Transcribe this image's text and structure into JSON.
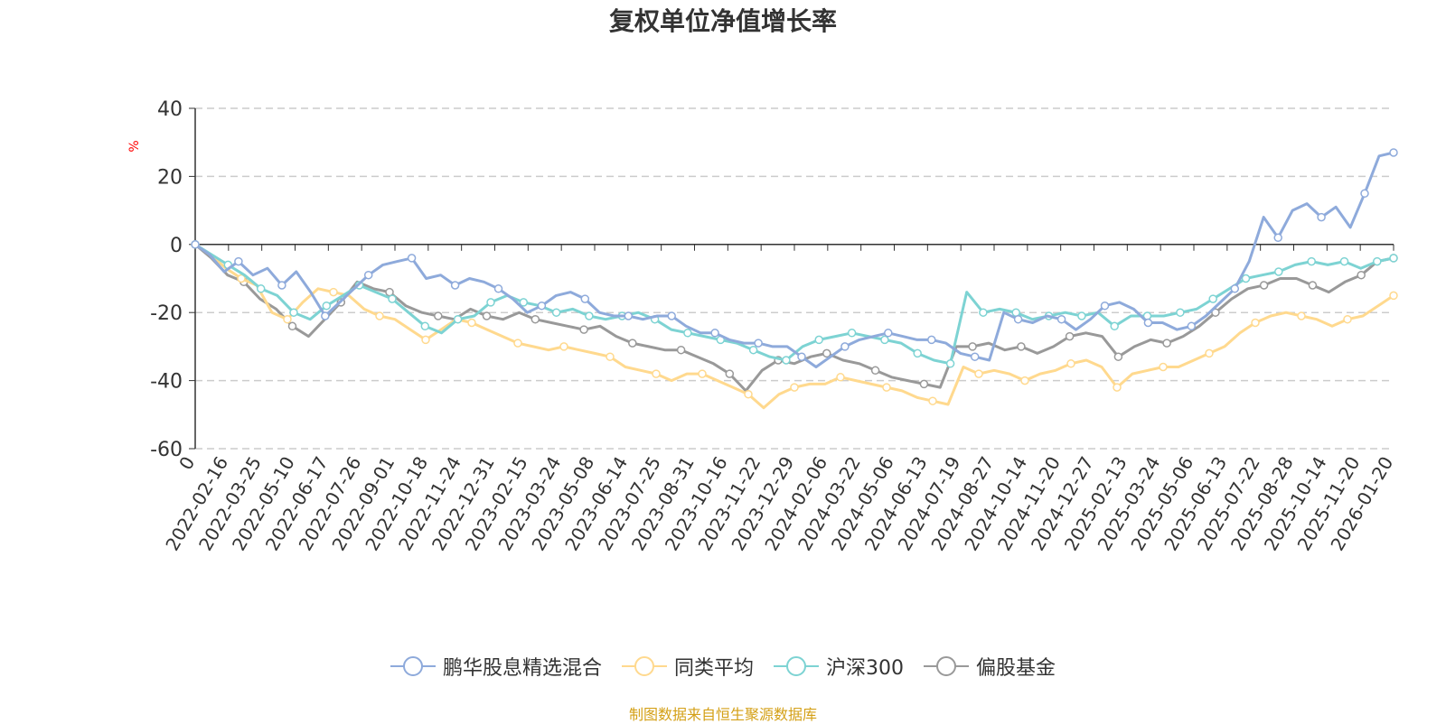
{
  "chart_data": {
    "type": "line",
    "title": "复权单位净值增长率",
    "ylabel": "%",
    "xlabel": "",
    "ylim": [
      -60,
      40
    ],
    "yticks": [
      40,
      20,
      0,
      -20,
      -40,
      -60
    ],
    "x_tick_labels": [
      "0",
      "2022-02-16",
      "2022-03-25",
      "2022-05-10",
      "2022-06-17",
      "2022-07-26",
      "2022-09-01",
      "2022-10-18",
      "2022-11-24",
      "2022-12-31",
      "2023-02-15",
      "2023-03-24",
      "2023-05-08",
      "2023-06-14",
      "2023-07-25",
      "2023-08-31",
      "2023-10-16",
      "2023-11-22",
      "2023-12-29",
      "2024-02-06",
      "2024-03-22",
      "2024-05-06",
      "2024-06-13",
      "2024-07-19",
      "2024-08-27",
      "2024-10-14",
      "2024-11-20",
      "2024-12-27",
      "2025-02-13",
      "2025-03-24",
      "2025-05-06",
      "2025-06-13",
      "2025-07-22",
      "2025-08-28",
      "2025-10-14",
      "2025-11-20",
      "2026-01-20"
    ],
    "grid": true,
    "legend_position": "bottom",
    "series": [
      {
        "name": "鹏华股息精选混合",
        "color": "#8eaadb",
        "values": [
          0,
          -3,
          -8,
          -5,
          -9,
          -7,
          -12,
          -8,
          -14,
          -21,
          -17,
          -13,
          -9,
          -6,
          -5,
          -4,
          -10,
          -9,
          -12,
          -10,
          -11,
          -13,
          -16,
          -20,
          -18,
          -15,
          -14,
          -16,
          -20,
          -21,
          -21,
          -22,
          -21,
          -21,
          -24,
          -26,
          -26,
          -28,
          -29,
          -29,
          -30,
          -30,
          -33,
          -36,
          -33,
          -30,
          -28,
          -27,
          -26,
          -27,
          -28,
          -28,
          -29,
          -32,
          -33,
          -34,
          -20,
          -22,
          -23,
          -21,
          -22,
          -25,
          -22,
          -18,
          -17,
          -19,
          -23,
          -23,
          -25,
          -24,
          -21,
          -17,
          -13,
          -5,
          8,
          2,
          10,
          12,
          8,
          11,
          5,
          15,
          26,
          27
        ]
      },
      {
        "name": "同类平均",
        "color": "#ffd98e",
        "values": [
          0,
          -3,
          -7,
          -10,
          -12,
          -20,
          -22,
          -17,
          -13,
          -14,
          -15,
          -19,
          -21,
          -22,
          -25,
          -28,
          -25,
          -22,
          -23,
          -25,
          -27,
          -29,
          -30,
          -31,
          -30,
          -31,
          -32,
          -33,
          -36,
          -37,
          -38,
          -40,
          -38,
          -38,
          -40,
          -42,
          -44,
          -48,
          -44,
          -42,
          -41,
          -41,
          -39,
          -40,
          -41,
          -42,
          -43,
          -45,
          -46,
          -47,
          -36,
          -38,
          -37,
          -38,
          -40,
          -38,
          -37,
          -35,
          -34,
          -36,
          -42,
          -38,
          -37,
          -36,
          -36,
          -34,
          -32,
          -30,
          -26,
          -23,
          -21,
          -20,
          -21,
          -22,
          -24,
          -22,
          -21,
          -18,
          -15
        ]
      },
      {
        "name": "沪深300",
        "color": "#7dd3d3",
        "values": [
          0,
          -3,
          -6,
          -9,
          -13,
          -15,
          -20,
          -22,
          -18,
          -15,
          -12,
          -14,
          -16,
          -20,
          -24,
          -26,
          -22,
          -21,
          -17,
          -15,
          -17,
          -18,
          -20,
          -19,
          -21,
          -22,
          -21,
          -20,
          -22,
          -25,
          -26,
          -27,
          -28,
          -29,
          -31,
          -33,
          -34,
          -30,
          -28,
          -27,
          -26,
          -27,
          -28,
          -29,
          -32,
          -34,
          -35,
          -14,
          -20,
          -19,
          -20,
          -22,
          -21,
          -20,
          -21,
          -20,
          -24,
          -21,
          -21,
          -21,
          -20,
          -19,
          -16,
          -13,
          -10,
          -9,
          -8,
          -6,
          -5,
          -6,
          -5,
          -7,
          -5,
          -4
        ]
      },
      {
        "name": "偏股基金",
        "color": "#999999",
        "values": [
          0,
          -4,
          -9,
          -11,
          -16,
          -19,
          -24,
          -27,
          -22,
          -17,
          -11,
          -13,
          -14,
          -18,
          -20,
          -21,
          -22,
          -19,
          -21,
          -22,
          -20,
          -22,
          -23,
          -24,
          -25,
          -24,
          -27,
          -29,
          -30,
          -31,
          -31,
          -33,
          -35,
          -38,
          -43,
          -37,
          -34,
          -35,
          -33,
          -32,
          -34,
          -35,
          -37,
          -39,
          -40,
          -41,
          -42,
          -30,
          -30,
          -29,
          -31,
          -30,
          -32,
          -30,
          -27,
          -26,
          -27,
          -33,
          -30,
          -28,
          -29,
          -27,
          -24,
          -20,
          -16,
          -13,
          -12,
          -10,
          -10,
          -12,
          -14,
          -11,
          -9,
          -5,
          -4
        ]
      }
    ]
  },
  "source": "制图数据来自恒生聚源数据库"
}
